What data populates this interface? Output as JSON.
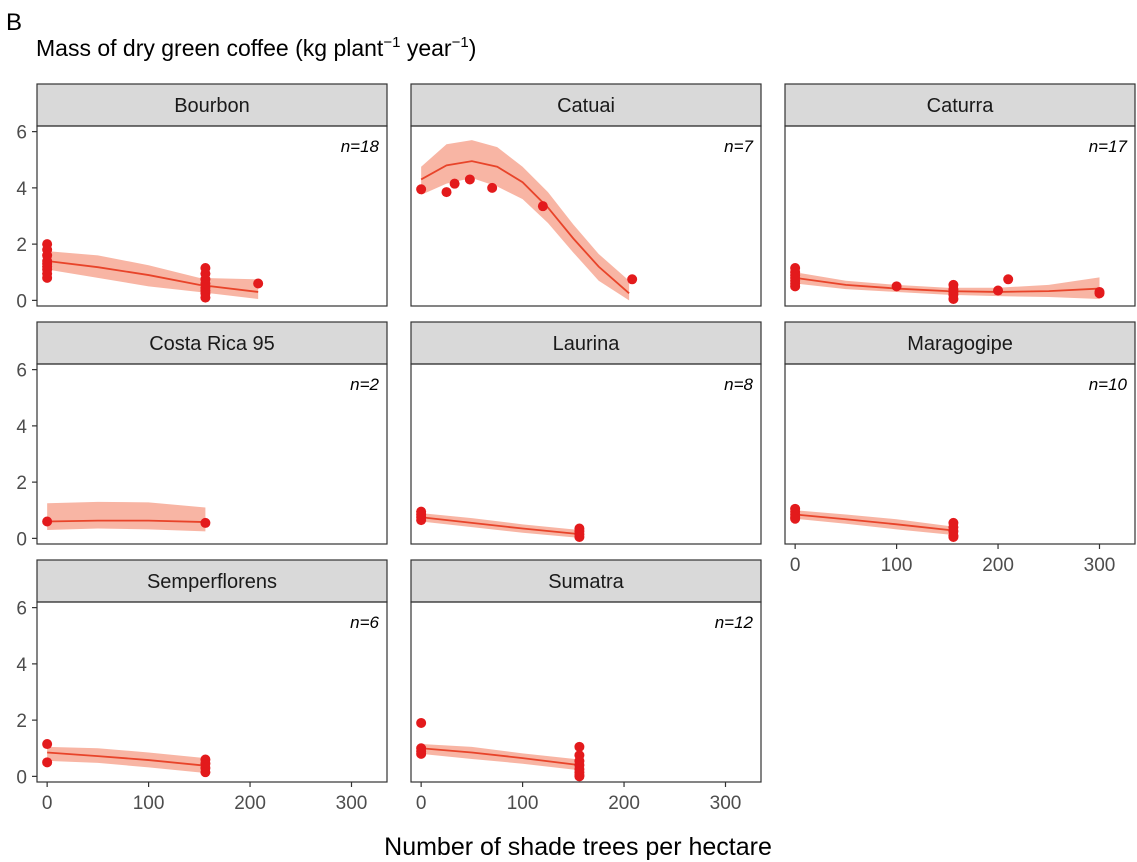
{
  "panel_letter": "B",
  "title": {
    "main": "Mass of dry green coffee (kg plant",
    "sup1": "−1",
    "mid": " year",
    "sup2": "−1",
    "end": ")"
  },
  "chart_data": {
    "type": "scatter",
    "xlabel": "Number of shade trees per hectare",
    "ylabel": "Mass of dry green coffee (kg plant−1 year−1)",
    "xlim": [
      -10,
      335
    ],
    "ylim": [
      -0.2,
      6.2
    ],
    "xticks": [
      0,
      100,
      200,
      300
    ],
    "yticks": [
      0,
      2,
      4,
      6
    ],
    "grid": false,
    "colors": {
      "points": "#e31a1c",
      "line": "#e8442a",
      "ribbon": "#f7a894",
      "strip": "#d9d9d9"
    },
    "facets": [
      {
        "name": "Bourbon",
        "n_label": "n=18",
        "points": [
          [
            0,
            2.0
          ],
          [
            0,
            1.8
          ],
          [
            0,
            1.6
          ],
          [
            0,
            1.4
          ],
          [
            0,
            1.3
          ],
          [
            0,
            1.2
          ],
          [
            0,
            1.1
          ],
          [
            0,
            0.95
          ],
          [
            0,
            0.8
          ],
          [
            156,
            1.15
          ],
          [
            156,
            0.95
          ],
          [
            156,
            0.75
          ],
          [
            156,
            0.6
          ],
          [
            156,
            0.45
          ],
          [
            156,
            0.35
          ],
          [
            156,
            0.25
          ],
          [
            156,
            0.1
          ],
          [
            208,
            0.6
          ]
        ],
        "fit": [
          [
            0,
            1.4
          ],
          [
            50,
            1.18
          ],
          [
            100,
            0.9
          ],
          [
            150,
            0.55
          ],
          [
            208,
            0.3
          ]
        ],
        "ci_upper": [
          [
            0,
            1.75
          ],
          [
            50,
            1.6
          ],
          [
            100,
            1.25
          ],
          [
            150,
            0.8
          ],
          [
            208,
            0.75
          ]
        ],
        "ci_lower": [
          [
            0,
            1.1
          ],
          [
            50,
            0.8
          ],
          [
            100,
            0.5
          ],
          [
            150,
            0.3
          ],
          [
            208,
            0.05
          ]
        ]
      },
      {
        "name": "Catuai",
        "n_label": "n=7",
        "points": [
          [
            0,
            3.95
          ],
          [
            25,
            3.85
          ],
          [
            33,
            4.15
          ],
          [
            48,
            4.3
          ],
          [
            70,
            4.0
          ],
          [
            120,
            3.35
          ],
          [
            208,
            0.75
          ]
        ],
        "fit": [
          [
            0,
            4.3
          ],
          [
            25,
            4.8
          ],
          [
            50,
            4.95
          ],
          [
            75,
            4.75
          ],
          [
            100,
            4.2
          ],
          [
            125,
            3.3
          ],
          [
            150,
            2.2
          ],
          [
            175,
            1.2
          ],
          [
            205,
            0.25
          ]
        ],
        "ci_upper": [
          [
            0,
            4.75
          ],
          [
            25,
            5.55
          ],
          [
            50,
            5.7
          ],
          [
            75,
            5.45
          ],
          [
            100,
            4.75
          ],
          [
            125,
            3.85
          ],
          [
            150,
            2.7
          ],
          [
            175,
            1.65
          ],
          [
            205,
            0.7
          ]
        ],
        "ci_lower": [
          [
            0,
            3.75
          ],
          [
            25,
            4.15
          ],
          [
            50,
            4.35
          ],
          [
            75,
            4.05
          ],
          [
            100,
            3.6
          ],
          [
            125,
            2.75
          ],
          [
            150,
            1.7
          ],
          [
            175,
            0.7
          ],
          [
            205,
            0.0
          ]
        ]
      },
      {
        "name": "Caturra",
        "n_label": "n=17",
        "points": [
          [
            0,
            1.15
          ],
          [
            0,
            1.0
          ],
          [
            0,
            0.9
          ],
          [
            0,
            0.8
          ],
          [
            0,
            0.7
          ],
          [
            0,
            0.6
          ],
          [
            0,
            0.5
          ],
          [
            100,
            0.5
          ],
          [
            156,
            0.55
          ],
          [
            156,
            0.4
          ],
          [
            156,
            0.3
          ],
          [
            156,
            0.2
          ],
          [
            156,
            0.05
          ],
          [
            200,
            0.35
          ],
          [
            210,
            0.75
          ],
          [
            300,
            0.25
          ],
          [
            300,
            0.3
          ]
        ],
        "fit": [
          [
            0,
            0.8
          ],
          [
            50,
            0.55
          ],
          [
            100,
            0.42
          ],
          [
            150,
            0.33
          ],
          [
            200,
            0.3
          ],
          [
            250,
            0.33
          ],
          [
            300,
            0.42
          ]
        ],
        "ci_upper": [
          [
            0,
            1.0
          ],
          [
            50,
            0.7
          ],
          [
            100,
            0.55
          ],
          [
            150,
            0.45
          ],
          [
            200,
            0.45
          ],
          [
            250,
            0.55
          ],
          [
            300,
            0.82
          ]
        ],
        "ci_lower": [
          [
            0,
            0.6
          ],
          [
            50,
            0.4
          ],
          [
            100,
            0.3
          ],
          [
            150,
            0.2
          ],
          [
            200,
            0.15
          ],
          [
            250,
            0.12
          ],
          [
            300,
            0.05
          ]
        ]
      },
      {
        "name": "Costa Rica 95",
        "n_label": "n=2",
        "points": [
          [
            0,
            0.6
          ],
          [
            156,
            0.55
          ]
        ],
        "fit": [
          [
            0,
            0.6
          ],
          [
            50,
            0.63
          ],
          [
            100,
            0.63
          ],
          [
            156,
            0.58
          ]
        ],
        "ci_upper": [
          [
            0,
            1.25
          ],
          [
            50,
            1.3
          ],
          [
            100,
            1.28
          ],
          [
            156,
            1.1
          ]
        ],
        "ci_lower": [
          [
            0,
            0.3
          ],
          [
            50,
            0.35
          ],
          [
            100,
            0.32
          ],
          [
            156,
            0.25
          ]
        ]
      },
      {
        "name": "Laurina",
        "n_label": "n=8",
        "points": [
          [
            0,
            0.95
          ],
          [
            0,
            0.85
          ],
          [
            0,
            0.75
          ],
          [
            0,
            0.65
          ],
          [
            156,
            0.35
          ],
          [
            156,
            0.25
          ],
          [
            156,
            0.15
          ],
          [
            156,
            0.05
          ]
        ],
        "fit": [
          [
            0,
            0.75
          ],
          [
            50,
            0.55
          ],
          [
            100,
            0.35
          ],
          [
            156,
            0.15
          ]
        ],
        "ci_upper": [
          [
            0,
            0.9
          ],
          [
            50,
            0.72
          ],
          [
            100,
            0.5
          ],
          [
            156,
            0.3
          ]
        ],
        "ci_lower": [
          [
            0,
            0.6
          ],
          [
            50,
            0.4
          ],
          [
            100,
            0.2
          ],
          [
            156,
            0.02
          ]
        ]
      },
      {
        "name": "Maragogipe",
        "n_label": "n=10",
        "points": [
          [
            0,
            1.05
          ],
          [
            0,
            0.95
          ],
          [
            0,
            0.85
          ],
          [
            0,
            0.75
          ],
          [
            0,
            0.7
          ],
          [
            156,
            0.55
          ],
          [
            156,
            0.4
          ],
          [
            156,
            0.25
          ],
          [
            156,
            0.1
          ],
          [
            156,
            0.05
          ]
        ],
        "fit": [
          [
            0,
            0.85
          ],
          [
            50,
            0.68
          ],
          [
            100,
            0.5
          ],
          [
            156,
            0.28
          ]
        ],
        "ci_upper": [
          [
            0,
            1.0
          ],
          [
            50,
            0.85
          ],
          [
            100,
            0.68
          ],
          [
            156,
            0.42
          ]
        ],
        "ci_lower": [
          [
            0,
            0.7
          ],
          [
            50,
            0.52
          ],
          [
            100,
            0.32
          ],
          [
            156,
            0.12
          ]
        ]
      },
      {
        "name": "Semperflorens",
        "n_label": "n=6",
        "points": [
          [
            0,
            1.15
          ],
          [
            0,
            0.5
          ],
          [
            156,
            0.6
          ],
          [
            156,
            0.45
          ],
          [
            156,
            0.3
          ],
          [
            156,
            0.15
          ]
        ],
        "fit": [
          [
            0,
            0.85
          ],
          [
            50,
            0.72
          ],
          [
            100,
            0.58
          ],
          [
            156,
            0.38
          ]
        ],
        "ci_upper": [
          [
            0,
            1.05
          ],
          [
            50,
            1.0
          ],
          [
            100,
            0.85
          ],
          [
            156,
            0.65
          ]
        ],
        "ci_lower": [
          [
            0,
            0.55
          ],
          [
            50,
            0.48
          ],
          [
            100,
            0.32
          ],
          [
            156,
            0.12
          ]
        ]
      },
      {
        "name": "Sumatra",
        "n_label": "n=12",
        "points": [
          [
            0,
            1.9
          ],
          [
            0,
            1.0
          ],
          [
            0,
            0.9
          ],
          [
            0,
            0.8
          ],
          [
            156,
            1.05
          ],
          [
            156,
            0.75
          ],
          [
            156,
            0.55
          ],
          [
            156,
            0.4
          ],
          [
            156,
            0.25
          ],
          [
            156,
            0.15
          ],
          [
            156,
            0.05
          ],
          [
            156,
            0.0
          ]
        ],
        "fit": [
          [
            0,
            1.0
          ],
          [
            50,
            0.85
          ],
          [
            100,
            0.65
          ],
          [
            156,
            0.4
          ]
        ],
        "ci_upper": [
          [
            0,
            1.15
          ],
          [
            50,
            1.05
          ],
          [
            100,
            0.82
          ],
          [
            156,
            0.6
          ]
        ],
        "ci_lower": [
          [
            0,
            0.8
          ],
          [
            50,
            0.62
          ],
          [
            100,
            0.45
          ],
          [
            156,
            0.22
          ]
        ]
      }
    ]
  }
}
